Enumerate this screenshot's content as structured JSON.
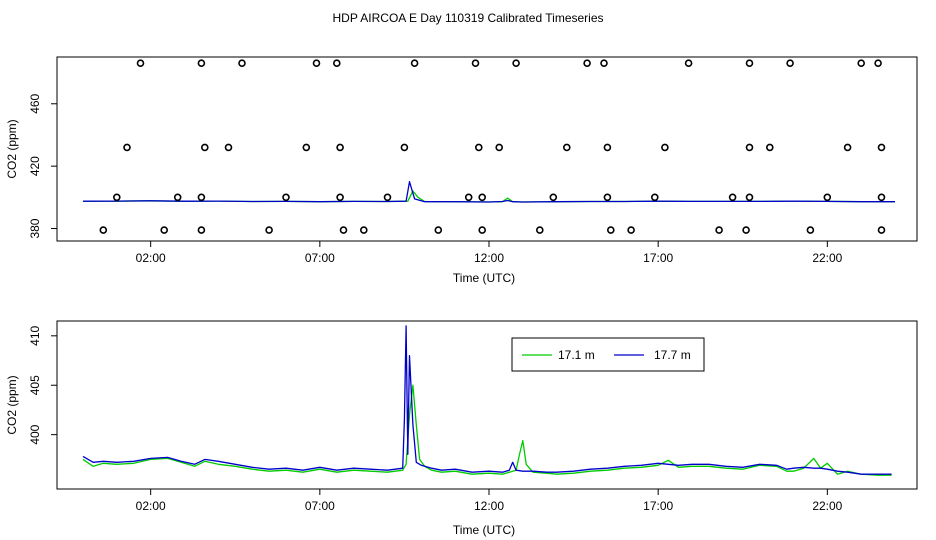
{
  "title": "HDP AIRCOA E  Day 110319  Calibrated Timeseries",
  "chart_data": [
    {
      "type": "line",
      "title": "",
      "xlabel": "Time (UTC)",
      "ylabel": "CO2 (ppm)",
      "x_unit": "hours UTC",
      "xlim": [
        0.0,
        24.0
      ],
      "ylim": [
        372,
        490
      ],
      "x_ticks": [
        2,
        7,
        12,
        17,
        22
      ],
      "x_tick_labels": [
        "02:00",
        "07:00",
        "12:00",
        "17:00",
        "22:00"
      ],
      "y_ticks": [
        380,
        420,
        460
      ],
      "y_tick_labels": [
        "380",
        "420",
        "460"
      ],
      "grid": false,
      "legend": null,
      "series": [
        {
          "name": "",
          "color": "#00cc00",
          "x": [
            0.0,
            1.0,
            2.0,
            3.0,
            4.0,
            5.0,
            6.0,
            7.0,
            8.0,
            9.0,
            9.6,
            9.75,
            9.9,
            10.1,
            11.0,
            12.0,
            12.4,
            12.55,
            12.7,
            13.0,
            14.0,
            15.0,
            16.0,
            17.0,
            18.0,
            19.0,
            20.0,
            21.0,
            22.0,
            23.0,
            24.0
          ],
          "y": [
            397.5,
            397.5,
            397.8,
            397.4,
            397.6,
            397.3,
            397.4,
            397.2,
            397.4,
            397.3,
            397.5,
            404,
            400,
            397.3,
            397.2,
            397.0,
            397.2,
            399.5,
            397.2,
            397.0,
            397.2,
            397.3,
            397.3,
            397.5,
            397.4,
            397.4,
            397.4,
            397.6,
            397.4,
            397.2,
            397.2
          ]
        },
        {
          "name": "",
          "color": "#0000cc",
          "x": [
            0.0,
            1.0,
            2.0,
            3.0,
            4.0,
            5.0,
            6.0,
            7.0,
            8.0,
            9.0,
            9.55,
            9.65,
            9.8,
            10.1,
            11.0,
            12.0,
            12.4,
            12.55,
            12.7,
            13.0,
            14.0,
            15.0,
            16.0,
            17.0,
            18.0,
            19.0,
            20.0,
            21.0,
            22.0,
            23.0,
            24.0
          ],
          "y": [
            397.5,
            397.6,
            397.8,
            397.5,
            397.6,
            397.3,
            397.4,
            397.2,
            397.4,
            397.3,
            397.5,
            410,
            399,
            397.2,
            397.2,
            397.0,
            397.3,
            398.0,
            397.2,
            397.0,
            397.2,
            397.3,
            397.3,
            397.5,
            397.4,
            397.4,
            397.4,
            397.5,
            397.4,
            397.2,
            397.2
          ]
        }
      ],
      "points_series": {
        "name": "",
        "marker": "open-circle",
        "color": "#000000",
        "x": [
          1.7,
          3.5,
          4.7,
          6.9,
          7.5,
          9.8,
          11.6,
          12.8,
          14.9,
          15.4,
          17.9,
          19.7,
          20.9,
          23.0,
          23.5,
          1.3,
          3.6,
          4.3,
          6.6,
          7.6,
          9.5,
          11.7,
          12.3,
          14.3,
          15.5,
          17.2,
          19.7,
          20.3,
          22.6,
          23.6,
          1.0,
          2.8,
          3.5,
          6.0,
          7.6,
          9.0,
          11.4,
          11.8,
          13.9,
          15.5,
          16.9,
          19.2,
          19.7,
          22.0,
          23.6,
          0.6,
          2.4,
          3.5,
          5.5,
          7.7,
          8.3,
          10.5,
          11.8,
          13.5,
          15.6,
          16.2,
          18.8,
          19.6,
          21.5,
          23.6
        ],
        "y": [
          486,
          486,
          486,
          486,
          486,
          486,
          486,
          486,
          486,
          486,
          486,
          486,
          486,
          486,
          486,
          432,
          432,
          432,
          432,
          432,
          432,
          432,
          432,
          432,
          432,
          432,
          432,
          432,
          432,
          432,
          400,
          400,
          400,
          400,
          400,
          400,
          400,
          400,
          400,
          400,
          400,
          400,
          400,
          400,
          400,
          379,
          379,
          379,
          379,
          379,
          379,
          379,
          379,
          379,
          379,
          379,
          379,
          379,
          379,
          379
        ]
      }
    },
    {
      "type": "line",
      "title": "",
      "xlabel": "Time (UTC)",
      "ylabel": "CO2 (ppm)",
      "x_unit": "hours UTC",
      "xlim": [
        0.0,
        24.0
      ],
      "ylim": [
        394.5,
        411.5
      ],
      "x_ticks": [
        2,
        7,
        12,
        17,
        22
      ],
      "x_tick_labels": [
        "02:00",
        "07:00",
        "12:00",
        "17:00",
        "22:00"
      ],
      "y_ticks": [
        400,
        405,
        410
      ],
      "y_tick_labels": [
        "400",
        "405",
        "410"
      ],
      "grid": false,
      "legend": "top-right",
      "series": [
        {
          "name": "17.1 m",
          "color": "#00cc00",
          "x": [
            0.0,
            0.3,
            0.6,
            1.0,
            1.5,
            2.0,
            2.5,
            2.9,
            3.3,
            3.6,
            4.0,
            4.5,
            5.0,
            5.5,
            6.0,
            6.5,
            7.0,
            7.5,
            8.0,
            8.5,
            9.0,
            9.45,
            9.55,
            9.65,
            9.75,
            9.85,
            9.95,
            10.1,
            10.3,
            10.6,
            11.0,
            11.5,
            12.0,
            12.4,
            12.6,
            12.8,
            12.9,
            13.0,
            13.1,
            13.3,
            13.7,
            14.0,
            14.5,
            15.0,
            15.5,
            16.0,
            16.5,
            17.0,
            17.3,
            17.6,
            18.0,
            18.5,
            19.0,
            19.5,
            20.0,
            20.5,
            20.8,
            21.0,
            21.3,
            21.6,
            21.8,
            22.0,
            22.3,
            22.6,
            23.0,
            23.5,
            23.9
          ],
          "y": [
            397.5,
            396.8,
            397.1,
            397.0,
            397.1,
            397.5,
            397.6,
            397.2,
            396.8,
            397.3,
            397.0,
            396.8,
            396.5,
            396.3,
            396.4,
            396.2,
            396.5,
            396.2,
            396.4,
            396.3,
            396.2,
            396.4,
            397.0,
            402.0,
            405.0,
            401.0,
            397.5,
            396.8,
            396.4,
            396.2,
            396.3,
            396.0,
            396.1,
            396.0,
            396.2,
            396.4,
            398.0,
            399.4,
            397.0,
            396.2,
            396.1,
            396.0,
            396.1,
            396.3,
            396.4,
            396.6,
            396.7,
            396.9,
            397.4,
            396.7,
            396.8,
            396.8,
            396.6,
            396.5,
            396.9,
            396.8,
            396.3,
            396.3,
            396.6,
            397.6,
            396.6,
            397.1,
            396.0,
            396.3,
            396.0,
            395.9,
            395.9
          ]
        },
        {
          "name": "17.7 m",
          "color": "#0000cc",
          "x": [
            0.0,
            0.3,
            0.6,
            1.0,
            1.5,
            2.0,
            2.5,
            2.9,
            3.3,
            3.6,
            4.0,
            4.5,
            5.0,
            5.5,
            6.0,
            6.5,
            7.0,
            7.5,
            8.0,
            8.5,
            9.0,
            9.45,
            9.5,
            9.55,
            9.6,
            9.65,
            9.75,
            9.85,
            10.0,
            10.3,
            10.6,
            11.0,
            11.5,
            12.0,
            12.4,
            12.6,
            12.7,
            12.8,
            13.0,
            13.3,
            13.7,
            14.0,
            14.5,
            15.0,
            15.5,
            16.0,
            16.5,
            17.0,
            17.3,
            17.6,
            18.0,
            18.5,
            19.0,
            19.5,
            20.0,
            20.5,
            20.8,
            21.0,
            21.3,
            21.6,
            21.8,
            22.0,
            22.3,
            22.6,
            23.0,
            23.5,
            23.9
          ],
          "y": [
            397.8,
            397.2,
            397.3,
            397.2,
            397.3,
            397.6,
            397.7,
            397.3,
            397.0,
            397.5,
            397.3,
            397.0,
            396.7,
            396.5,
            396.6,
            396.4,
            396.7,
            396.4,
            396.6,
            396.5,
            396.4,
            396.6,
            401.5,
            411.0,
            398.0,
            408.0,
            401.0,
            397.2,
            396.9,
            396.6,
            396.4,
            396.5,
            396.2,
            396.3,
            396.2,
            396.4,
            397.2,
            396.4,
            396.3,
            396.3,
            396.2,
            396.2,
            396.3,
            396.5,
            396.6,
            396.8,
            396.9,
            397.1,
            397.0,
            396.9,
            397.0,
            397.0,
            396.8,
            396.7,
            397.0,
            396.9,
            396.5,
            396.6,
            396.7,
            396.6,
            396.6,
            396.5,
            396.3,
            396.2,
            396.0,
            396.0,
            396.0
          ]
        }
      ]
    }
  ]
}
